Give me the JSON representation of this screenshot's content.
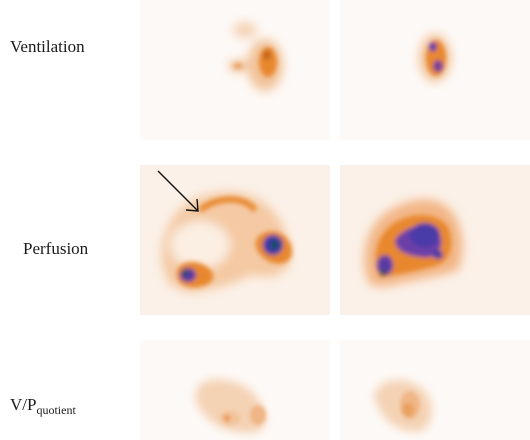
{
  "labels": {
    "ventilation": "Ventilation",
    "perfusion": "Perfusion",
    "vp_main": "V/P",
    "vp_sub": "quotient"
  },
  "colors": {
    "background": "#fdf9f6",
    "orange_light": "#f2c39a",
    "orange": "#e8882f",
    "orange_dark": "#c5601c",
    "purple": "#6b3fa8",
    "blue_violet": "#3a3aa8",
    "teal_dark": "#0f4f4a"
  },
  "annotation": {
    "arrow": "arrow-annotation"
  }
}
